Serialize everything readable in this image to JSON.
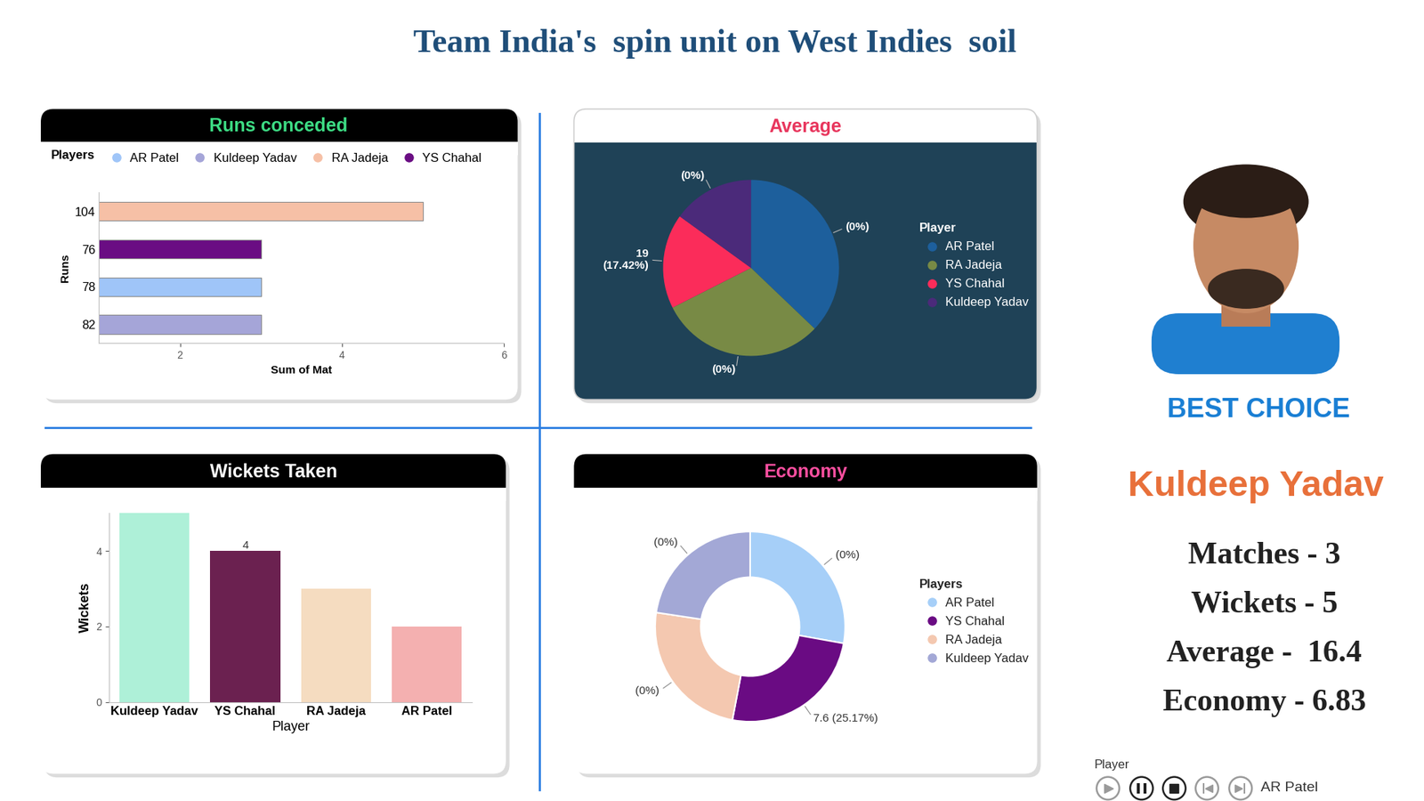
{
  "title": "Team India's  spin unit on West Indies  soil",
  "chart_data": [
    {
      "type": "bar",
      "orientation": "horizontal",
      "title": "Runs conceded",
      "legend_title": "Players",
      "legend": "upper left",
      "xlabel": "Sum of Mat",
      "ylabel": "Runs",
      "categories": [
        "104",
        "76",
        "78",
        "82"
      ],
      "series": [
        {
          "name": "AR Patel",
          "color": "#9fc5f8",
          "values": [
            null,
            null,
            3,
            null
          ]
        },
        {
          "name": "Kuldeep Yadav",
          "color": "#a5a5d8",
          "values": [
            null,
            null,
            null,
            3
          ]
        },
        {
          "name": "RA Jadeja",
          "color": "#f6c0a6",
          "values": [
            5,
            null,
            null,
            null
          ]
        },
        {
          "name": "YS Chahal",
          "color": "#6a0d83",
          "values": [
            null,
            3,
            null,
            null
          ]
        }
      ],
      "xlim": [
        1,
        6
      ],
      "xticks": [
        2,
        4,
        6
      ]
    },
    {
      "type": "pie",
      "title": "Average",
      "legend_title": "Player",
      "legend": "upper left",
      "categories": [
        "AR Patel",
        "RA Jadeja",
        "YS Chahal",
        "Kuldeep Yadav"
      ],
      "values": [
        40.5,
        33.17,
        19,
        16.4
      ],
      "colors": [
        "#1d5f9c",
        "#788a45",
        "#fb2c5a",
        "#4b2a7a"
      ],
      "labels": [
        "(0%)",
        "(0%)",
        "19\n(17.42%)",
        "(0%)"
      ]
    },
    {
      "type": "bar",
      "title": "Wickets Taken",
      "xlabel": "Player",
      "ylabel": "Wickets",
      "categories": [
        "Kuldeep Yadav",
        "YS Chahal",
        "RA Jadeja",
        "AR Patel"
      ],
      "values": [
        5,
        4,
        3,
        2
      ],
      "colors": [
        "#aef0d8",
        "#6b2150",
        "#f5dcc0",
        "#f4b0b0"
      ],
      "value_labels": [
        null,
        "4",
        null,
        null
      ],
      "ylim": [
        0,
        5
      ],
      "yticks": [
        0,
        2,
        4
      ]
    },
    {
      "type": "donut",
      "title": "Economy",
      "legend_title": "Players",
      "legend": "upper left",
      "categories": [
        "AR Patel",
        "YS Chahal",
        "RA Jadeja",
        "Kuldeep Yadav"
      ],
      "values": [
        8.4,
        7.6,
        7.36,
        6.83
      ],
      "colors": [
        "#a6cff8",
        "#6a0b83",
        "#f4c8b0",
        "#a3a8d6"
      ],
      "labels": [
        "(0%)",
        "7.6 (25.17%)",
        "(0%)",
        "(0%)"
      ]
    }
  ],
  "best_choice": {
    "heading": "BEST CHOICE",
    "player": "Kuldeep Yadav",
    "stats": [
      "Matches - 3",
      "Wickets - 5",
      "Average -  16.4",
      "Economy - 6.83"
    ]
  },
  "slicer": {
    "title": "Player",
    "selected": "AR Patel"
  }
}
